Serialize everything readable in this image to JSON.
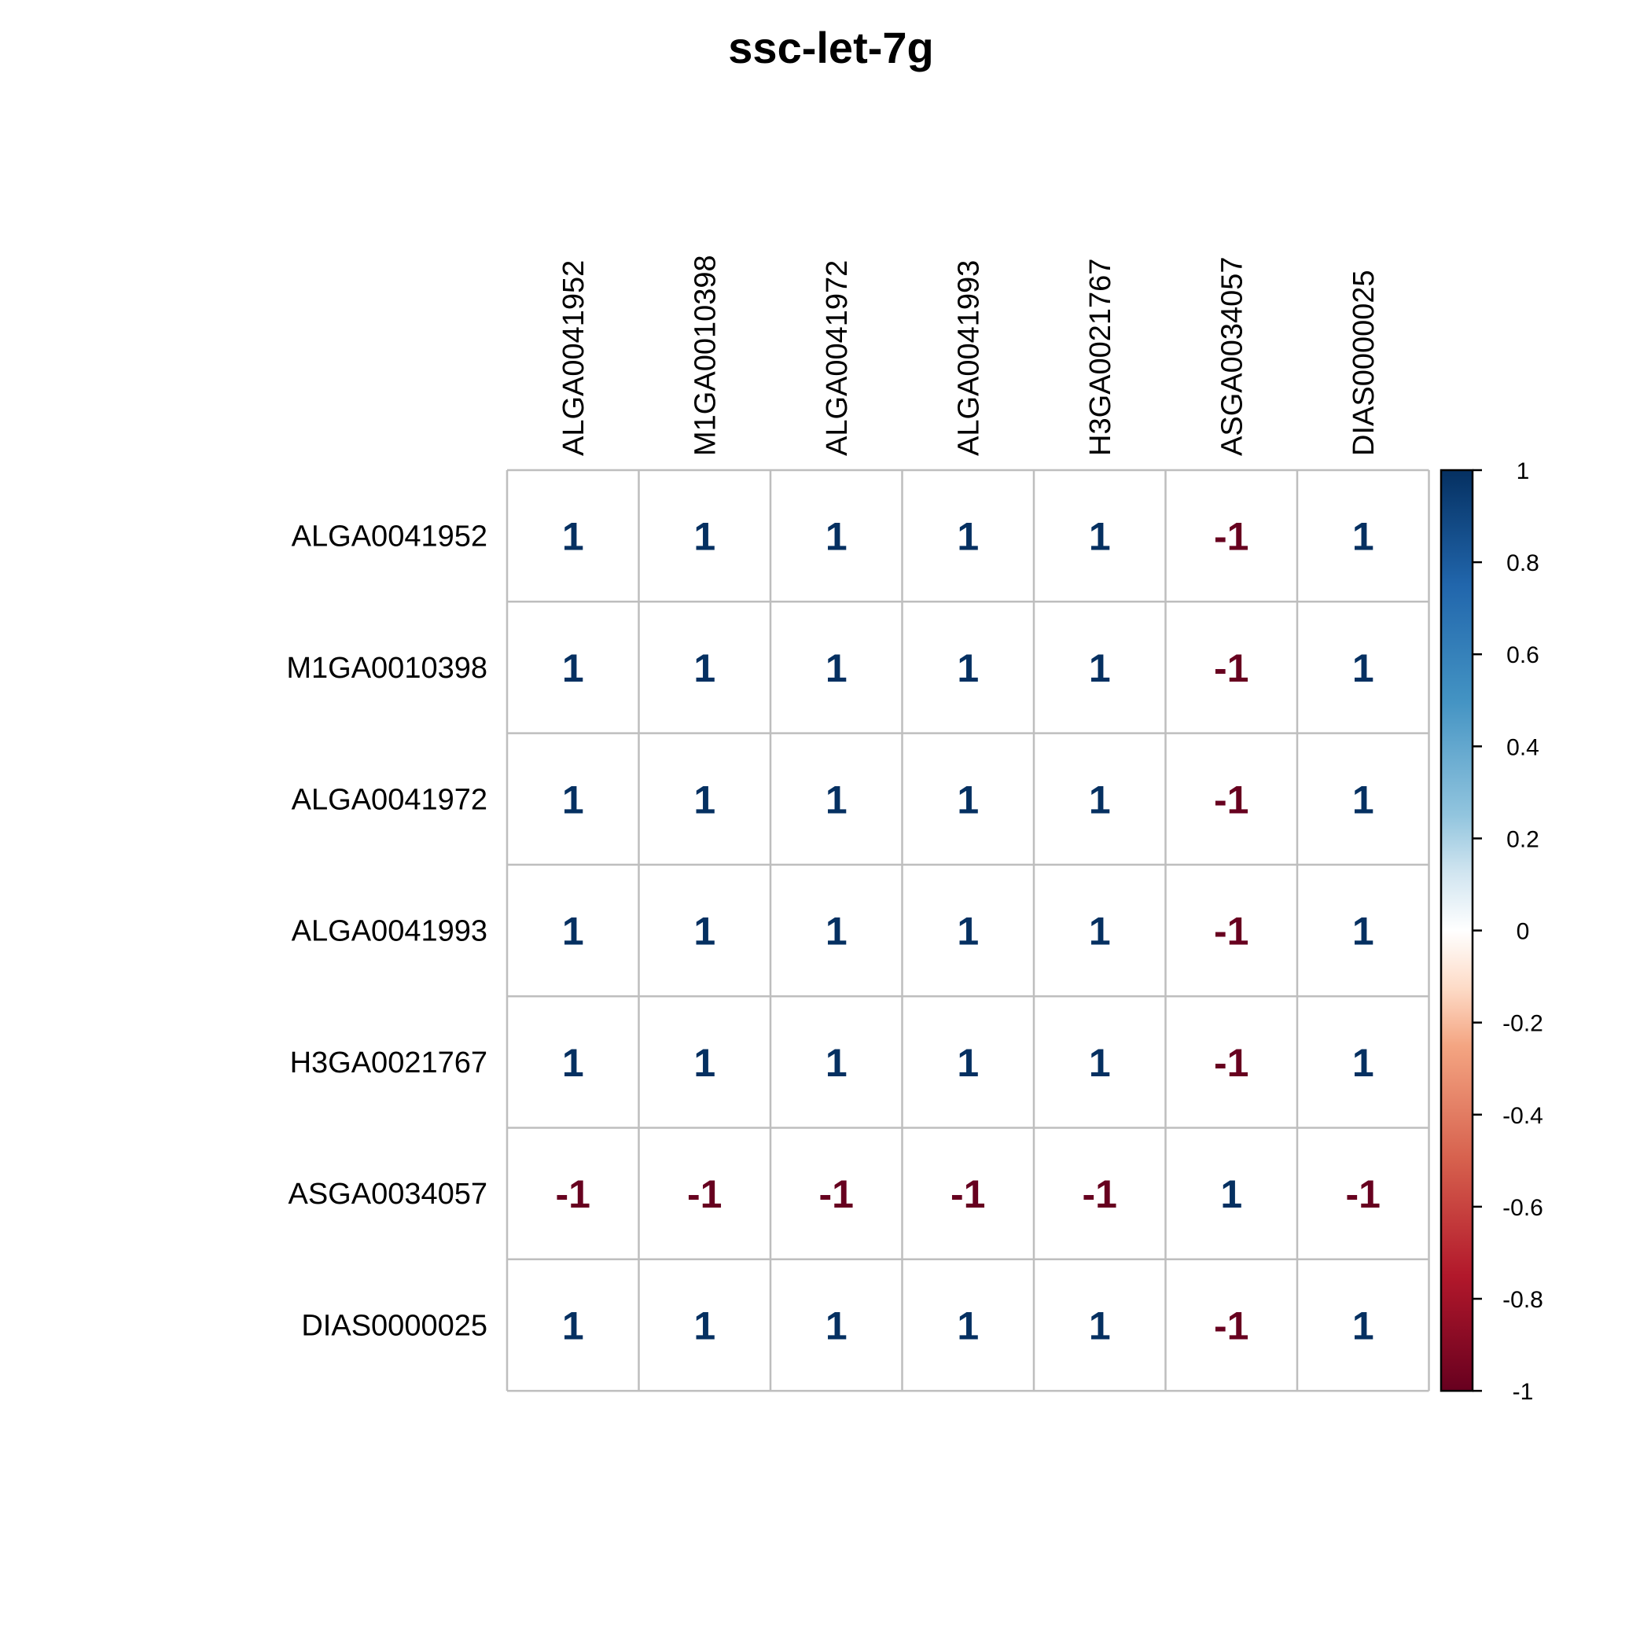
{
  "chart_data": {
    "type": "heatmap",
    "title": "ssc-let-7g",
    "rows": [
      "ALGA0041952",
      "M1GA0010398",
      "ALGA0041972",
      "ALGA0041993",
      "H3GA0021767",
      "ASGA0034057",
      "DIAS0000025"
    ],
    "columns": [
      "ALGA0041952",
      "M1GA0010398",
      "ALGA0041972",
      "ALGA0041993",
      "H3GA0021767",
      "ASGA0034057",
      "DIAS0000025"
    ],
    "values": [
      [
        1,
        1,
        1,
        1,
        1,
        -1,
        1
      ],
      [
        1,
        1,
        1,
        1,
        1,
        -1,
        1
      ],
      [
        1,
        1,
        1,
        1,
        1,
        -1,
        1
      ],
      [
        1,
        1,
        1,
        1,
        1,
        -1,
        1
      ],
      [
        1,
        1,
        1,
        1,
        1,
        -1,
        1
      ],
      [
        -1,
        -1,
        -1,
        -1,
        -1,
        1,
        -1
      ],
      [
        1,
        1,
        1,
        1,
        1,
        -1,
        1
      ]
    ],
    "colorbar": {
      "range": [
        -1,
        1
      ],
      "ticks": [
        1,
        0.8,
        0.6,
        0.4,
        0.2,
        0,
        -0.2,
        -0.4,
        -0.6,
        -0.8,
        -1
      ],
      "tick_labels": [
        "1",
        "0.8",
        "0.6",
        "0.4",
        "0.2",
        "0",
        "-0.2",
        "-0.4",
        "-0.6",
        "-0.8",
        "-1"
      ],
      "colors": {
        "1": "#053061",
        "0.75": "#2166AC",
        "0.5": "#4393C3",
        "0.25": "#92C5DE",
        "0.125": "#D1E5F0",
        "0": "#FFFFFF",
        "-0.125": "#FDDBC7",
        "-0.25": "#F4A582",
        "-0.5": "#D6604D",
        "-0.75": "#B2182B",
        "-1": "#67001F"
      }
    },
    "grid": true,
    "legend_position": "right"
  }
}
